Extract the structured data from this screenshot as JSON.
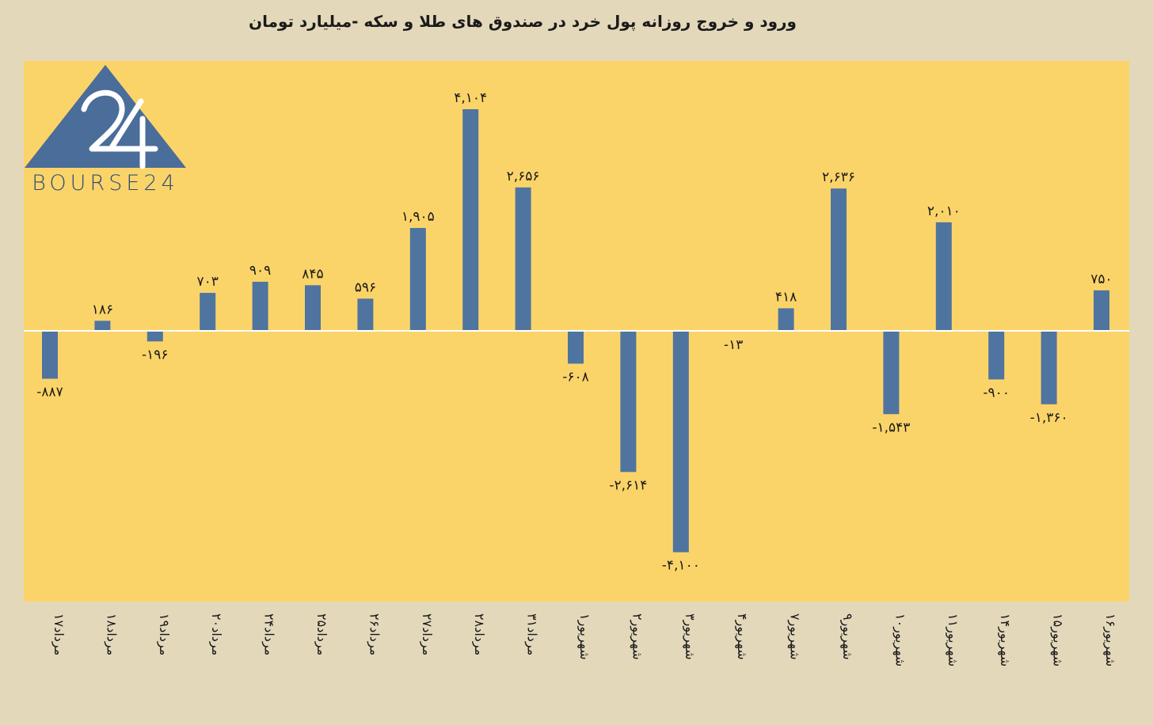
{
  "title": "ورود و خروج روزانه پول خرد در صندوق های طلا و سکه -میلیارد تومان",
  "logo": {
    "text": "BOURSE24",
    "mark": "24"
  },
  "colors": {
    "page_bg": "#e4d8bb",
    "plot_bg": "#fbd469",
    "bar": "#4f74a0",
    "zero_line": "#ffffff",
    "logo": "#4a6d9a"
  },
  "chart_data": {
    "type": "bar",
    "title": "ورود و خروج روزانه پول خرد در صندوق های طلا و سکه -میلیارد تومان",
    "categories": [
      "۱۷مرداد",
      "۱۸مرداد",
      "۱۹مرداد",
      "۲۰مرداد",
      "۲۴مرداد",
      "۲۵مرداد",
      "۲۶مرداد",
      "۲۷مرداد",
      "۲۸مرداد",
      "۳۱مرداد",
      "۱شهریور",
      "۲شهریور",
      "۳شهریور",
      "۴شهریور",
      "۷شهریور",
      "۹شهریور",
      "۱۰شهریور",
      "۱۱شهریور",
      "۱۴شهریور",
      "۱۵شهریور",
      "۱۶شهریور"
    ],
    "values": [
      -887,
      186,
      -196,
      703,
      909,
      845,
      596,
      1905,
      4104,
      2656,
      -608,
      -2614,
      -4100,
      -13,
      418,
      2636,
      -1543,
      2010,
      -900,
      -1360,
      750
    ],
    "data_labels": [
      "-۸۸۷",
      "۱۸۶",
      "-۱۹۶",
      "۷۰۳",
      "۹۰۹",
      "۸۴۵",
      "۵۹۶",
      "۱,۹۰۵",
      "۴,۱۰۴",
      "۲,۶۵۶",
      "-۶۰۸",
      "-۲,۶۱۴",
      "-۴,۱۰۰",
      "-۱۳",
      "۴۱۸",
      "۲,۶۳۶",
      "-۱,۵۴۳",
      "۲,۰۱۰",
      "-۹۰۰",
      "-۱,۳۶۰",
      "۷۵۰"
    ],
    "ylim": [
      -5000,
      5000
    ],
    "grid": false,
    "legend": "none"
  }
}
